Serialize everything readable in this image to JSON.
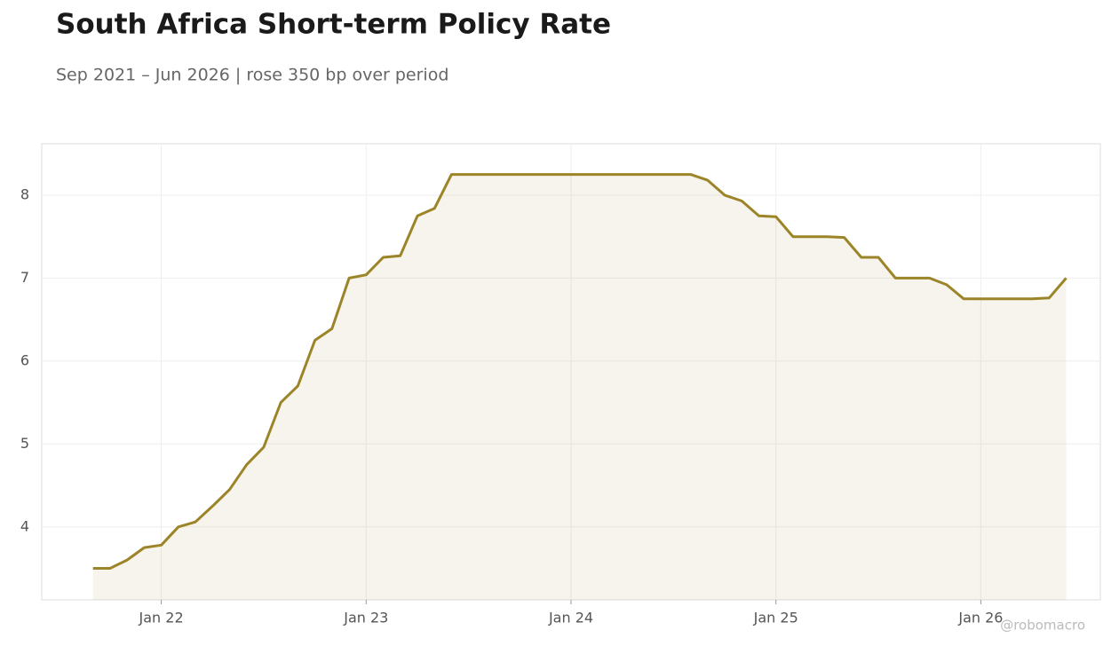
{
  "chart_data": {
    "type": "line",
    "title": "South Africa Short-term Policy Rate",
    "subtitle": "Sep 2021 – Jun 2026 | rose 350 bp over period",
    "watermark": "@robomacro",
    "x": [
      "2021-09",
      "2021-10",
      "2021-11",
      "2021-12",
      "2022-01",
      "2022-02",
      "2022-03",
      "2022-04",
      "2022-05",
      "2022-06",
      "2022-07",
      "2022-08",
      "2022-09",
      "2022-10",
      "2022-11",
      "2022-12",
      "2023-01",
      "2023-02",
      "2023-03",
      "2023-04",
      "2023-05",
      "2023-06",
      "2023-07",
      "2023-08",
      "2023-09",
      "2023-10",
      "2023-11",
      "2023-12",
      "2024-01",
      "2024-02",
      "2024-03",
      "2024-04",
      "2024-05",
      "2024-06",
      "2024-07",
      "2024-08",
      "2024-09",
      "2024-10",
      "2024-11",
      "2024-12",
      "2025-01",
      "2025-02",
      "2025-03",
      "2025-04",
      "2025-05",
      "2025-06",
      "2025-07",
      "2025-08",
      "2025-09",
      "2025-10",
      "2025-11",
      "2025-12",
      "2026-01",
      "2026-02",
      "2026-03",
      "2026-04",
      "2026-05",
      "2026-06"
    ],
    "series": [
      {
        "name": "Policy rate",
        "color": "#9c8428",
        "values": [
          3.5,
          3.5,
          3.6,
          3.75,
          3.78,
          4.0,
          4.06,
          4.25,
          4.45,
          4.75,
          4.96,
          5.5,
          5.7,
          6.25,
          6.39,
          7.0,
          7.04,
          7.25,
          7.27,
          7.75,
          7.84,
          8.25,
          8.25,
          8.25,
          8.25,
          8.25,
          8.25,
          8.25,
          8.25,
          8.25,
          8.25,
          8.25,
          8.25,
          8.25,
          8.25,
          8.25,
          8.18,
          8.0,
          7.93,
          7.75,
          7.74,
          7.5,
          7.5,
          7.5,
          7.49,
          7.25,
          7.25,
          7.0,
          7.0,
          7.0,
          6.92,
          6.75,
          6.75,
          6.75,
          6.75,
          6.75,
          6.76,
          7.0
        ]
      }
    ],
    "xlim": [
      "2021-06",
      "2026-08"
    ],
    "xticks": [
      {
        "value": "2022-01",
        "label": "Jan 22"
      },
      {
        "value": "2023-01",
        "label": "Jan 23"
      },
      {
        "value": "2024-01",
        "label": "Jan 24"
      },
      {
        "value": "2025-01",
        "label": "Jan 25"
      },
      {
        "value": "2026-01",
        "label": "Jan 26"
      }
    ],
    "ylim": [
      3.12,
      8.62
    ],
    "yticks": [
      4,
      5,
      6,
      7,
      8
    ],
    "grid": true,
    "fill": true
  }
}
